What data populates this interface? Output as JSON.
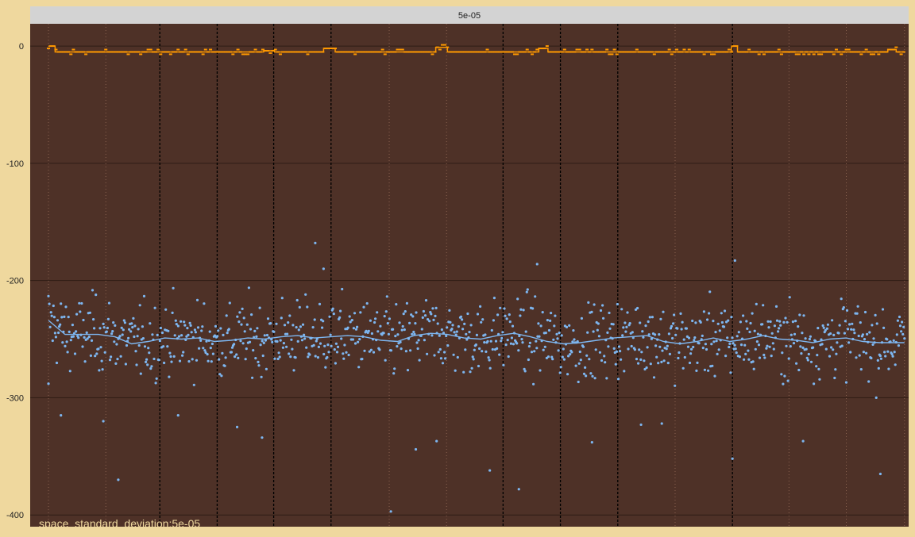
{
  "colors": {
    "page_background": "#efd89e",
    "strip_background": "#d3d3d3",
    "panel_background": "#4e3127",
    "grid": "#2e1c15",
    "solid_vline": "#000000",
    "dotted_vline": "#8a6250",
    "orange_series": "#ff9900",
    "blue_series": "#7db6f0",
    "annotation": "#efd89e"
  },
  "chart_data": {
    "type": "scatter",
    "facet_label": "5e-05",
    "annotation": "space_standard_deviation:5e-05",
    "title": "",
    "xlabel": "",
    "ylabel": "",
    "xlim": [
      -22,
      1035
    ],
    "ylim": [
      -410,
      19
    ],
    "y_ticks": [
      0,
      -100,
      -200,
      -300,
      -400
    ],
    "y_tick_labels": [
      "0",
      "-100",
      "-200",
      "-300",
      "-400"
    ],
    "grid": true,
    "legend": "none",
    "solid_vlines_x": [
      134,
      203,
      271,
      340,
      547,
      616,
      685,
      823
    ],
    "dotted_vlines_x": [
      0,
      69,
      410,
      479,
      754,
      891,
      960,
      1030
    ],
    "orange_step_levels": [
      {
        "x": [
          0,
          8
        ],
        "y": 0
      },
      {
        "x": [
          8,
          259
        ],
        "y": -5
      },
      {
        "x": [
          259,
          272
        ],
        "y": -4
      },
      {
        "x": [
          272,
          331
        ],
        "y": -5
      },
      {
        "x": [
          331,
          345
        ],
        "y": -2
      },
      {
        "x": [
          345,
          466
        ],
        "y": -5
      },
      {
        "x": [
          466,
          480
        ],
        "y": -1
      },
      {
        "x": [
          480,
          590
        ],
        "y": -5
      },
      {
        "x": [
          590,
          601
        ],
        "y": -2
      },
      {
        "x": [
          601,
          822
        ],
        "y": -5
      },
      {
        "x": [
          822,
          829
        ],
        "y": 0
      },
      {
        "x": [
          829,
          1010
        ],
        "y": -5
      },
      {
        "x": [
          1010,
          1020
        ],
        "y": -3
      },
      {
        "x": [
          1020,
          1030
        ],
        "y": -5
      }
    ],
    "blue_trend": {
      "x": [
        0,
        20,
        40,
        60,
        80,
        100,
        120,
        140,
        160,
        180,
        200,
        220,
        240,
        260,
        280,
        300,
        320,
        340,
        360,
        380,
        400,
        420,
        440,
        460,
        480,
        500,
        520,
        540,
        560,
        580,
        600,
        620,
        640,
        660,
        680,
        700,
        720,
        740,
        760,
        780,
        800,
        820,
        840,
        860,
        880,
        900,
        920,
        940,
        960,
        980,
        1000,
        1030
      ],
      "y": [
        -234,
        -246,
        -246,
        -246,
        -248,
        -254,
        -252,
        -249,
        -250,
        -249,
        -252,
        -251,
        -249,
        -250,
        -248,
        -247,
        -249,
        -248,
        -247,
        -248,
        -251,
        -252,
        -247,
        -245,
        -246,
        -249,
        -250,
        -247,
        -245,
        -248,
        -252,
        -254,
        -253,
        -251,
        -249,
        -248,
        -247,
        -252,
        -254,
        -252,
        -249,
        -252,
        -250,
        -247,
        -250,
        -251,
        -253,
        -250,
        -249,
        -252,
        -253,
        -253
      ]
    },
    "blue_points_summary": {
      "count": 1030,
      "center_y": -250,
      "spread_sd": 22,
      "x_range": [
        0,
        1030
      ]
    },
    "blue_outliers": [
      {
        "x": 0,
        "y": -288
      },
      {
        "x": 15,
        "y": -315
      },
      {
        "x": 66,
        "y": -320
      },
      {
        "x": 84,
        "y": -370
      },
      {
        "x": 156,
        "y": -315
      },
      {
        "x": 227,
        "y": -325
      },
      {
        "x": 257,
        "y": -334
      },
      {
        "x": 321,
        "y": -168
      },
      {
        "x": 412,
        "y": -397
      },
      {
        "x": 442,
        "y": -344
      },
      {
        "x": 467,
        "y": -337
      },
      {
        "x": 531,
        "y": -362
      },
      {
        "x": 566,
        "y": -378
      },
      {
        "x": 654,
        "y": -338
      },
      {
        "x": 713,
        "y": -323
      },
      {
        "x": 738,
        "y": -322
      },
      {
        "x": 823,
        "y": -352
      },
      {
        "x": 908,
        "y": -337
      },
      {
        "x": 1001,
        "y": -365
      },
      {
        "x": 826,
        "y": -183
      },
      {
        "x": 588,
        "y": -186
      },
      {
        "x": 331,
        "y": -190
      }
    ]
  }
}
